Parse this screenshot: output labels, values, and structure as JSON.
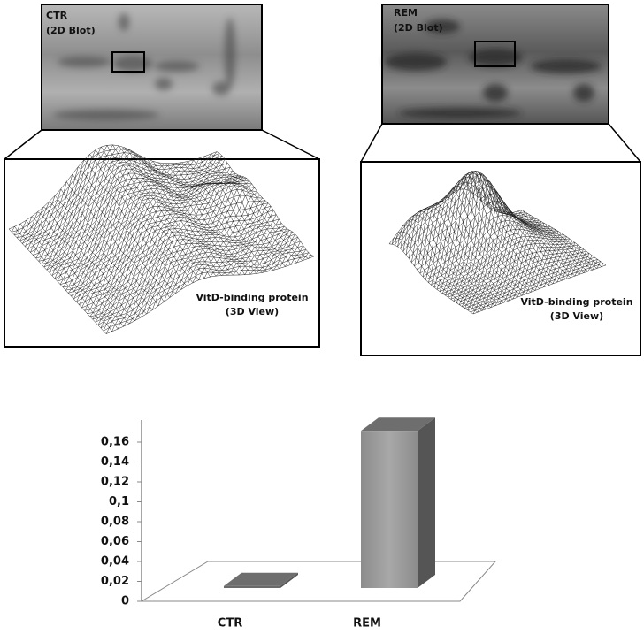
{
  "panels": [
    {
      "label": "CTR",
      "sublabel": "(2D Blot)",
      "view_label": "VitD-binding protein",
      "view_sublabel": "(3D View)"
    },
    {
      "label": "REM",
      "sublabel": "(2D Blot)",
      "view_label": "VitD-binding protein",
      "view_sublabel": "(3D View)"
    }
  ],
  "chart_data": {
    "type": "bar3d",
    "categories": [
      "CTR",
      "REM"
    ],
    "values": [
      0.002,
      0.158
    ],
    "colors": [
      "#6a6a6a",
      "#9a9a9a"
    ],
    "ylim": [
      0,
      0.16
    ],
    "yticks": [
      0,
      {
        "value": 0.02,
        "label": "0,02"
      },
      {
        "value": 0.04,
        "label": "0,04"
      },
      {
        "value": 0.06,
        "label": "0,06"
      },
      {
        "value": 0.08,
        "label": "0,08"
      },
      {
        "value": 0.1,
        "label": "0,1"
      },
      {
        "value": 0.12,
        "label": "0,12"
      },
      {
        "value": 0.14,
        "label": "0,14"
      },
      {
        "value": 0.16,
        "label": "0,16"
      }
    ]
  }
}
